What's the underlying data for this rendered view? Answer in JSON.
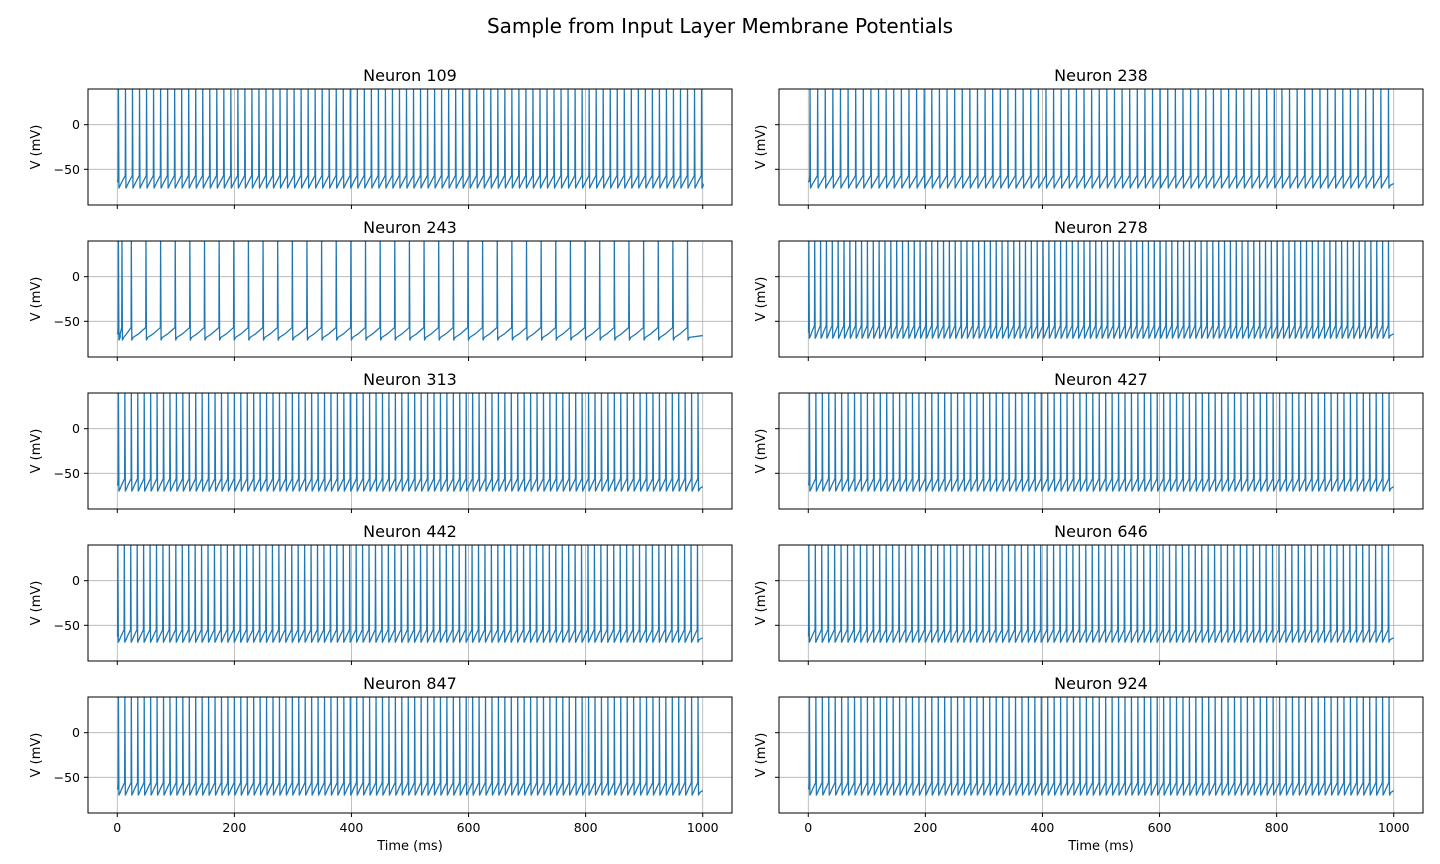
{
  "figure": {
    "title": "Sample from Input Layer Membrane Potentials",
    "line_color": "#1f77b4"
  },
  "chart_data": [
    {
      "type": "line",
      "title": "Neuron 109",
      "ylabel": "V (mV)",
      "xlabel": "",
      "xlim": [
        -50,
        1050
      ],
      "ylim": [
        -90,
        40
      ],
      "xticks": [
        0,
        200,
        400,
        600,
        800,
        1000
      ],
      "yticks": [
        -50,
        0
      ],
      "grid": true,
      "series": [
        {
          "resting_mV": -65,
          "spike_times_ms": [
            2,
            14,
            26,
            38,
            50,
            62,
            74,
            86,
            98,
            110,
            122,
            134,
            146,
            158,
            170,
            182,
            194,
            206,
            218,
            230,
            242,
            254,
            266,
            278,
            290,
            302,
            314,
            326,
            338,
            350,
            362,
            374,
            386,
            398,
            410,
            422,
            434,
            446,
            458,
            470,
            482,
            494,
            506,
            518,
            530,
            542,
            554,
            566,
            578,
            590,
            602,
            614,
            626,
            638,
            650,
            662,
            674,
            686,
            698,
            710,
            722,
            734,
            746,
            758,
            770,
            782,
            794,
            806,
            818,
            830,
            842,
            854,
            866,
            878,
            890,
            902,
            914,
            926,
            938,
            950,
            962,
            974,
            986,
            998
          ]
        }
      ]
    },
    {
      "type": "line",
      "title": "Neuron 238",
      "ylabel": "V (mV)",
      "xlabel": "",
      "xlim": [
        -50,
        1050
      ],
      "ylim": [
        -90,
        40
      ],
      "xticks": [
        0,
        200,
        400,
        600,
        800,
        1000
      ],
      "yticks": [
        -50,
        0
      ],
      "grid": true,
      "series": [
        {
          "resting_mV": -65,
          "spike_times_ms": [
            3,
            16,
            29,
            42,
            55,
            68,
            81,
            94,
            107,
            120,
            133,
            146,
            159,
            172,
            185,
            198,
            211,
            224,
            237,
            250,
            263,
            276,
            289,
            302,
            315,
            328,
            341,
            354,
            367,
            380,
            393,
            406,
            419,
            432,
            445,
            458,
            471,
            484,
            497,
            510,
            523,
            536,
            549,
            562,
            575,
            588,
            601,
            614,
            627,
            640,
            653,
            666,
            679,
            692,
            705,
            718,
            731,
            744,
            757,
            770,
            783,
            796,
            809,
            822,
            835,
            848,
            861,
            874,
            887,
            900,
            913,
            926,
            939,
            952,
            965,
            978,
            991
          ]
        }
      ]
    },
    {
      "type": "line",
      "title": "Neuron 243",
      "ylabel": "V (mV)",
      "xlabel": "",
      "xlim": [
        -50,
        1050
      ],
      "ylim": [
        -90,
        40
      ],
      "xticks": [
        0,
        200,
        400,
        600,
        800,
        1000
      ],
      "yticks": [
        -50,
        0
      ],
      "grid": true,
      "series": [
        {
          "resting_mV": -65,
          "spike_times_ms": [
            2,
            8,
            24,
            49,
            74,
            99,
            124,
            149,
            174,
            199,
            224,
            249,
            274,
            299,
            324,
            349,
            374,
            399,
            424,
            449,
            474,
            499,
            524,
            549,
            574,
            599,
            624,
            649,
            674,
            699,
            724,
            749,
            774,
            799,
            824,
            849,
            874,
            899,
            924,
            949,
            974
          ]
        }
      ]
    },
    {
      "type": "line",
      "title": "Neuron 278",
      "ylabel": "V (mV)",
      "xlabel": "",
      "xlim": [
        -50,
        1050
      ],
      "ylim": [
        -90,
        40
      ],
      "xticks": [
        0,
        200,
        400,
        600,
        800,
        1000
      ],
      "yticks": [
        -50,
        0
      ],
      "grid": true,
      "series": [
        {
          "resting_mV": -63,
          "spike_times_ms": [
            1,
            11,
            21,
            31,
            41,
            51,
            61,
            71,
            81,
            91,
            101,
            111,
            121,
            131,
            141,
            151,
            161,
            171,
            181,
            191,
            201,
            211,
            221,
            231,
            241,
            251,
            261,
            271,
            281,
            291,
            301,
            311,
            321,
            331,
            341,
            351,
            361,
            371,
            381,
            391,
            401,
            411,
            421,
            431,
            441,
            451,
            461,
            471,
            481,
            491,
            501,
            511,
            521,
            531,
            541,
            551,
            561,
            571,
            581,
            591,
            601,
            611,
            621,
            631,
            641,
            651,
            661,
            671,
            681,
            691,
            701,
            711,
            721,
            731,
            741,
            751,
            761,
            771,
            781,
            791,
            801,
            811,
            821,
            831,
            841,
            851,
            861,
            871,
            881,
            891,
            901,
            911,
            921,
            931,
            941,
            951,
            961,
            971,
            981,
            991
          ]
        }
      ]
    },
    {
      "type": "line",
      "title": "Neuron 313",
      "ylabel": "V (mV)",
      "xlabel": "",
      "xlim": [
        -50,
        1050
      ],
      "ylim": [
        -90,
        40
      ],
      "xticks": [
        0,
        200,
        400,
        600,
        800,
        1000
      ],
      "yticks": [
        -50,
        0
      ],
      "grid": true,
      "series": [
        {
          "resting_mV": -64,
          "spike_times_ms": [
            2,
            13,
            24,
            35,
            46,
            57,
            68,
            79,
            90,
            101,
            112,
            123,
            134,
            145,
            156,
            167,
            178,
            189,
            200,
            211,
            222,
            233,
            244,
            255,
            266,
            277,
            288,
            299,
            310,
            321,
            332,
            343,
            354,
            365,
            376,
            387,
            398,
            409,
            420,
            431,
            442,
            453,
            464,
            475,
            486,
            497,
            508,
            519,
            530,
            541,
            552,
            563,
            574,
            585,
            596,
            607,
            618,
            629,
            640,
            651,
            662,
            673,
            684,
            695,
            706,
            717,
            728,
            739,
            750,
            761,
            772,
            783,
            794,
            805,
            816,
            827,
            838,
            849,
            860,
            871,
            882,
            893,
            904,
            915,
            926,
            937,
            948,
            959,
            970,
            981,
            992
          ]
        }
      ]
    },
    {
      "type": "line",
      "title": "Neuron 427",
      "ylabel": "V (mV)",
      "xlabel": "",
      "xlim": [
        -50,
        1050
      ],
      "ylim": [
        -90,
        40
      ],
      "xticks": [
        0,
        200,
        400,
        600,
        800,
        1000
      ],
      "yticks": [
        -50,
        0
      ],
      "grid": true,
      "series": [
        {
          "resting_mV": -64,
          "spike_times_ms": [
            2,
            13,
            24,
            35,
            46,
            57,
            68,
            79,
            90,
            101,
            112,
            123,
            134,
            145,
            156,
            167,
            178,
            189,
            200,
            211,
            222,
            233,
            244,
            255,
            266,
            277,
            288,
            299,
            310,
            321,
            332,
            343,
            354,
            365,
            376,
            387,
            398,
            409,
            420,
            431,
            442,
            453,
            464,
            475,
            486,
            497,
            508,
            519,
            530,
            541,
            552,
            563,
            574,
            585,
            596,
            607,
            618,
            629,
            640,
            651,
            662,
            673,
            684,
            695,
            706,
            717,
            728,
            739,
            750,
            761,
            772,
            783,
            794,
            805,
            816,
            827,
            838,
            849,
            860,
            871,
            882,
            893,
            904,
            915,
            926,
            937,
            948,
            959,
            970,
            981,
            992
          ]
        }
      ]
    },
    {
      "type": "line",
      "title": "Neuron 442",
      "ylabel": "V (mV)",
      "xlabel": "",
      "xlim": [
        -50,
        1050
      ],
      "ylim": [
        -90,
        40
      ],
      "xticks": [
        0,
        200,
        400,
        600,
        800,
        1000
      ],
      "yticks": [
        -50,
        0
      ],
      "grid": true,
      "series": [
        {
          "resting_mV": -63,
          "spike_times_ms": [
            1,
            12,
            23,
            34,
            45,
            56,
            67,
            78,
            89,
            100,
            111,
            122,
            133,
            144,
            155,
            166,
            177,
            188,
            199,
            210,
            221,
            232,
            243,
            254,
            265,
            276,
            287,
            298,
            309,
            320,
            331,
            342,
            353,
            364,
            375,
            386,
            397,
            408,
            419,
            430,
            441,
            452,
            463,
            474,
            485,
            496,
            507,
            518,
            529,
            540,
            551,
            562,
            573,
            584,
            595,
            606,
            617,
            628,
            639,
            650,
            661,
            672,
            683,
            694,
            705,
            716,
            727,
            738,
            749,
            760,
            771,
            782,
            793,
            804,
            815,
            826,
            837,
            848,
            859,
            870,
            881,
            892,
            903,
            914,
            925,
            936,
            947,
            958,
            969,
            980,
            991
          ]
        }
      ]
    },
    {
      "type": "line",
      "title": "Neuron 646",
      "ylabel": "V (mV)",
      "xlabel": "",
      "xlim": [
        -50,
        1050
      ],
      "ylim": [
        -90,
        40
      ],
      "xticks": [
        0,
        200,
        400,
        600,
        800,
        1000
      ],
      "yticks": [
        -50,
        0
      ],
      "grid": true,
      "series": [
        {
          "resting_mV": -63,
          "spike_times_ms": [
            1,
            12,
            23,
            34,
            45,
            56,
            67,
            78,
            89,
            100,
            111,
            122,
            133,
            144,
            155,
            166,
            177,
            188,
            199,
            210,
            221,
            232,
            243,
            254,
            265,
            276,
            287,
            298,
            309,
            320,
            331,
            342,
            353,
            364,
            375,
            386,
            397,
            408,
            419,
            430,
            441,
            452,
            463,
            474,
            485,
            496,
            507,
            518,
            529,
            540,
            551,
            562,
            573,
            584,
            595,
            606,
            617,
            628,
            639,
            650,
            661,
            672,
            683,
            694,
            705,
            716,
            727,
            738,
            749,
            760,
            771,
            782,
            793,
            804,
            815,
            826,
            837,
            848,
            859,
            870,
            881,
            892,
            903,
            914,
            925,
            936,
            947,
            958,
            969,
            980,
            991
          ]
        }
      ]
    },
    {
      "type": "line",
      "title": "Neuron 847",
      "ylabel": "V (mV)",
      "xlabel": "Time (ms)",
      "xlim": [
        -50,
        1050
      ],
      "ylim": [
        -90,
        40
      ],
      "xticks": [
        0,
        200,
        400,
        600,
        800,
        1000
      ],
      "yticks": [
        -50,
        0
      ],
      "grid": true,
      "series": [
        {
          "resting_mV": -64,
          "spike_times_ms": [
            2,
            13,
            24,
            35,
            46,
            57,
            68,
            79,
            90,
            101,
            112,
            123,
            134,
            145,
            156,
            167,
            178,
            189,
            200,
            211,
            222,
            233,
            244,
            255,
            266,
            277,
            288,
            299,
            310,
            321,
            332,
            343,
            354,
            365,
            376,
            387,
            398,
            409,
            420,
            431,
            442,
            453,
            464,
            475,
            486,
            497,
            508,
            519,
            530,
            541,
            552,
            563,
            574,
            585,
            596,
            607,
            618,
            629,
            640,
            651,
            662,
            673,
            684,
            695,
            706,
            717,
            728,
            739,
            750,
            761,
            772,
            783,
            794,
            805,
            816,
            827,
            838,
            849,
            860,
            871,
            882,
            893,
            904,
            915,
            926,
            937,
            948,
            959,
            970,
            981,
            992
          ]
        }
      ]
    },
    {
      "type": "line",
      "title": "Neuron 924",
      "ylabel": "V (mV)",
      "xlabel": "Time (ms)",
      "xlim": [
        -50,
        1050
      ],
      "ylim": [
        -90,
        40
      ],
      "xticks": [
        0,
        200,
        400,
        600,
        800,
        1000
      ],
      "yticks": [
        -50,
        0
      ],
      "grid": true,
      "series": [
        {
          "resting_mV": -64,
          "spike_times_ms": [
            2,
            13,
            24,
            35,
            46,
            57,
            68,
            79,
            90,
            101,
            112,
            123,
            134,
            145,
            156,
            167,
            178,
            189,
            200,
            211,
            222,
            233,
            244,
            255,
            266,
            277,
            288,
            299,
            310,
            321,
            332,
            343,
            354,
            365,
            376,
            387,
            398,
            409,
            420,
            431,
            442,
            453,
            464,
            475,
            486,
            497,
            508,
            519,
            530,
            541,
            552,
            563,
            574,
            585,
            596,
            607,
            618,
            629,
            640,
            651,
            662,
            673,
            684,
            695,
            706,
            717,
            728,
            739,
            750,
            761,
            772,
            783,
            794,
            805,
            816,
            827,
            838,
            849,
            860,
            871,
            882,
            893,
            904,
            915,
            926,
            937,
            948,
            959,
            970,
            981,
            992
          ]
        }
      ]
    }
  ]
}
